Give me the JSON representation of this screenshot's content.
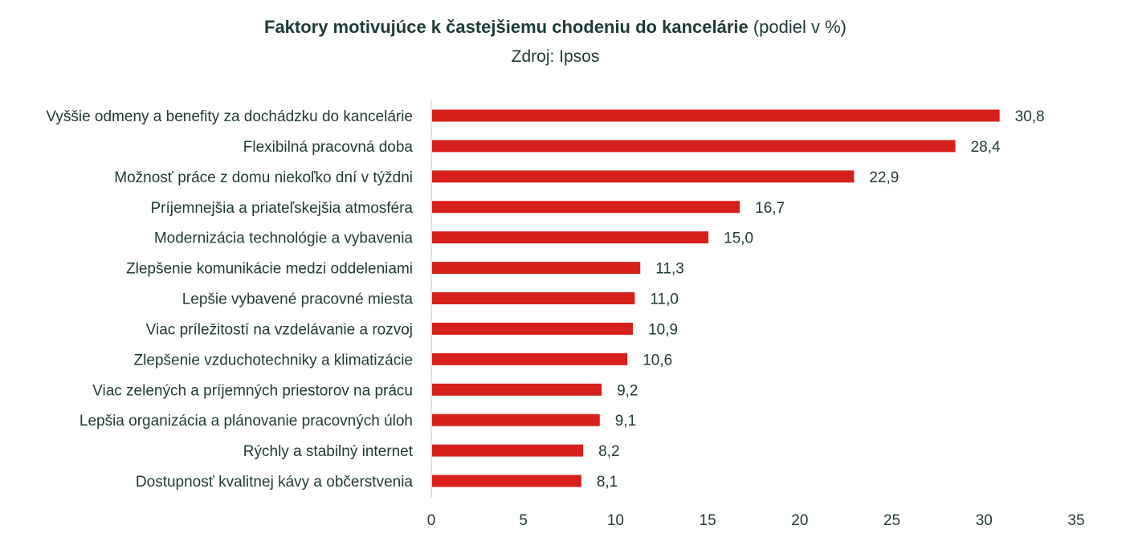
{
  "title": {
    "bold": "Faktory motivujúce k častejšiemu chodeniu do kancelárie",
    "rest": " (podiel v %)"
  },
  "subtitle": "Zdroj: Ipsos",
  "chart_data": {
    "type": "bar",
    "orientation": "horizontal",
    "title": "Faktory motivujúce k častejšiemu chodeniu do kancelárie (podiel v %)",
    "subtitle": "Zdroj: Ipsos",
    "categories": [
      "Vyššie odmeny a benefity za dochádzku do kancelárie",
      "Flexibilná pracovná doba",
      "Možnosť práce z domu niekoľko dní v týždni",
      "Príjemnejšia a priateľskejšia atmosféra",
      "Modernizácia technológie a vybavenia",
      "Zlepšenie komunikácie medzi oddeleniami",
      "Lepšie vybavené pracovné miesta",
      "Viac príležitostí na vzdelávanie a rozvoj",
      "Zlepšenie vzduchotechniky a klimatizácie",
      "Viac zelených a príjemných priestorov na prácu",
      "Lepšia organizácia a plánovanie pracovných úloh",
      "Rýchly a stabilný internet",
      "Dostupnosť kvalitnej kávy a občerstvenia"
    ],
    "values": [
      30.8,
      28.4,
      22.9,
      16.7,
      15.0,
      11.3,
      11.0,
      10.9,
      10.6,
      9.2,
      9.1,
      8.2,
      8.1
    ],
    "value_labels": [
      "30,8",
      "28,4",
      "22,9",
      "16,7",
      "15,0",
      "11,3",
      "11,0",
      "10,9",
      "10,6",
      "9,2",
      "9,1",
      "8,2",
      "8,1"
    ],
    "xlim": [
      0,
      35
    ],
    "xticks": [
      0,
      5,
      10,
      15,
      20,
      25,
      30,
      35
    ],
    "xlabel": "",
    "ylabel": "",
    "grid": false,
    "legend": "none",
    "bar_color": "#d7201c",
    "axis_color": "#d9d9d9"
  }
}
